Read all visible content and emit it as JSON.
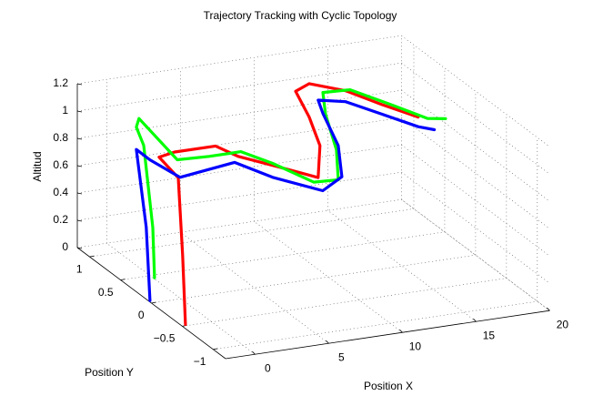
{
  "chart_data": {
    "type": "line3d",
    "title": "Trajectory Tracking with Cyclic Topology",
    "xlabel": "Position X",
    "ylabel": "Position Y",
    "zlabel": "Altitud",
    "xlim": [
      -2,
      20
    ],
    "ylim": [
      -1.2,
      1.2
    ],
    "zlim": [
      0,
      1.2
    ],
    "xticks": [
      0,
      5,
      10,
      15,
      20
    ],
    "yticks": [
      {
        "value": -1,
        "label": "−1"
      },
      {
        "value": -0.5,
        "label": "−0.5"
      },
      0,
      0.5,
      1
    ],
    "zticks": [
      0,
      0.2,
      0.4,
      0.6,
      0.8,
      1,
      1.2
    ],
    "grid": true,
    "series": [
      {
        "color": "#ff0000",
        "x": [
          -1.79,
          -1.56,
          -1.02,
          -0.64,
          0.41,
          3.19,
          4.31,
          6.85,
          8.06,
          9.44,
          10.38,
          11.14,
          12.9,
          14.53,
          16.16,
          18.2
        ],
        "y": [
          -0.5,
          -0.4,
          -0.2,
          0.2,
          0.2,
          0.2,
          0.1,
          0,
          -0.3,
          0,
          0.4,
          0.8,
          1.0,
          0.8,
          0.6,
          0.5
        ],
        "z": [
          0.01,
          0.48,
          0.97,
          0.98,
          1.0,
          1.0,
          0.94,
          0.85,
          0.86,
          0.97,
          1.03,
          1.07,
          1.03,
          1.02,
          0.96,
          0.87
        ]
      },
      {
        "color": "#00ff00",
        "x": [
          -0.53,
          -0.44,
          -0.01,
          0.33,
          0.93,
          1.01,
          3.38,
          5.75,
          7.49,
          9.01,
          11.1,
          12.23,
          13.17,
          14.25,
          16.1,
          18.0,
          18.83,
          18.8
        ],
        "y": [
          0.3,
          0.35,
          0.6,
          0.8,
          0.9,
          0.3,
          0.35,
          0.4,
          0.3,
          0,
          0.1,
          0.4,
          0.8,
          1.1,
          1.1,
          0.9,
          0.5,
          0.2
        ],
        "z": [
          0.06,
          0.41,
          0.92,
          0.98,
          1.0,
          0.9,
          0.87,
          0.85,
          0.77,
          0.71,
          0.66,
          0.76,
          0.87,
          0.91,
          0.9,
          0.83,
          0.85,
          0.95
        ]
      },
      {
        "color": "#0000ff",
        "x": [
          -1.89,
          -1.93,
          -1.77,
          -1.26,
          -0.06,
          4.06,
          5.81,
          7.95,
          10.09,
          11.52,
          12.15,
          13.09,
          14.53,
          16.16,
          17.79,
          19.3
        ],
        "y": [
          0.05,
          0.1,
          0.3,
          0.2,
          0,
          0.1,
          -0.1,
          -0.4,
          -0.2,
          0.2,
          0.6,
          0.9,
          0.8,
          0.6,
          0.4,
          0.5
        ],
        "z": [
          0.0,
          0.52,
          1.02,
          0.97,
          0.89,
          0.9,
          0.83,
          0.8,
          0.8,
          0.87,
          0.96,
          0.94,
          0.94,
          0.89,
          0.84,
          0.76
        ]
      }
    ]
  }
}
